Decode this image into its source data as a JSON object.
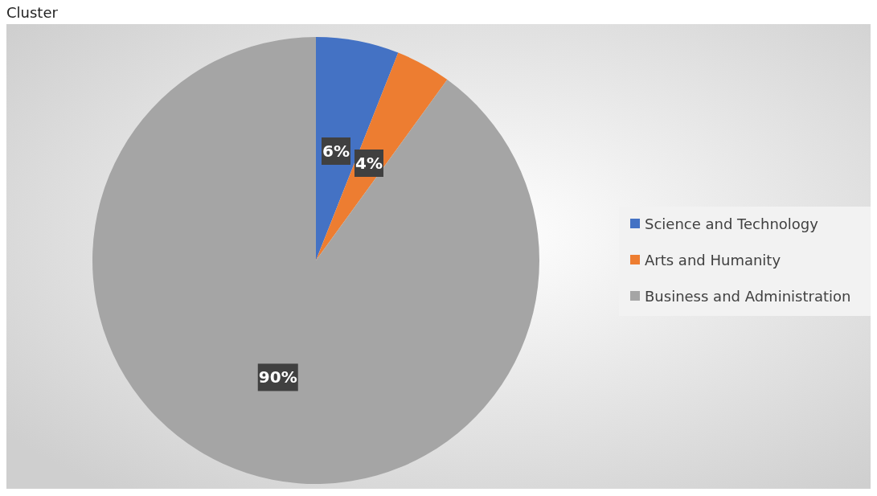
{
  "chart_data": {
    "type": "pie",
    "title": "Cluster",
    "categories": [
      "Science and Technology",
      "Arts and Humanity",
      "Business and Administration"
    ],
    "values": [
      6,
      4,
      90
    ],
    "colors": [
      "#4472c4",
      "#ed7d31",
      "#a5a5a5"
    ],
    "value_labels": [
      "6%",
      "4%",
      "90%"
    ],
    "legend": "right"
  }
}
